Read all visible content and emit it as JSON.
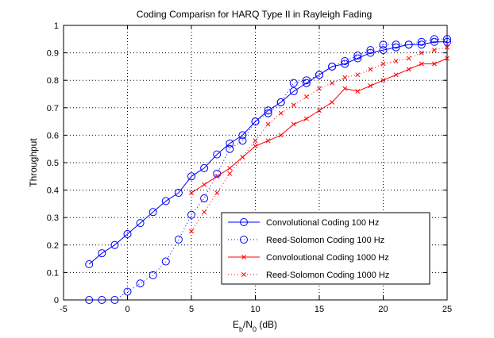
{
  "chart_data": {
    "type": "line",
    "title": "Coding Comparisn for HARQ Type II in Rayleigh Fading",
    "xlabel_base": "E",
    "xlabel_sub1": "b",
    "xlabel_mid": "/N",
    "xlabel_sub2": "0",
    "xlabel_unit": " (dB)",
    "ylabel": "Throughput",
    "xlim": [
      -5,
      25
    ],
    "ylim": [
      0,
      1
    ],
    "xticks": [
      -5,
      0,
      5,
      10,
      15,
      20,
      25
    ],
    "yticks": [
      0,
      0.1,
      0.2,
      0.3,
      0.4,
      0.5,
      0.6,
      0.7,
      0.8,
      0.9,
      1
    ],
    "grid": true,
    "legend_position": "lower-right",
    "series": [
      {
        "name": "Convolutional Coding 100 Hz",
        "color": "#0000ff",
        "line": "solid",
        "marker": "circle",
        "x": [
          -3,
          -2,
          -1,
          0,
          1,
          2,
          3,
          4,
          5,
          6,
          7,
          8,
          9,
          10,
          11,
          12,
          13,
          14,
          15,
          16,
          17,
          18,
          19,
          20,
          21,
          22,
          23,
          24,
          25
        ],
        "y": [
          0.13,
          0.17,
          0.2,
          0.24,
          0.28,
          0.32,
          0.36,
          0.39,
          0.45,
          0.48,
          0.53,
          0.57,
          0.6,
          0.65,
          0.69,
          0.72,
          0.76,
          0.79,
          0.82,
          0.85,
          0.86,
          0.88,
          0.9,
          0.91,
          0.92,
          0.93,
          0.93,
          0.94,
          0.94
        ]
      },
      {
        "name": "Reed-Solomon Coding 100 Hz",
        "color": "#0000ff",
        "line": "dotted",
        "marker": "circle",
        "x": [
          -3,
          -2,
          -1,
          0,
          1,
          2,
          3,
          4,
          5,
          6,
          7,
          8,
          9,
          10,
          11,
          12,
          13,
          14,
          15,
          16,
          17,
          18,
          19,
          20,
          21,
          22,
          23,
          24,
          25
        ],
        "y": [
          0.0,
          0.0,
          0.0,
          0.03,
          0.06,
          0.09,
          0.14,
          0.22,
          0.31,
          0.37,
          0.46,
          0.55,
          0.58,
          0.65,
          0.68,
          0.72,
          0.79,
          0.8,
          0.82,
          0.85,
          0.87,
          0.89,
          0.91,
          0.93,
          0.93,
          0.93,
          0.94,
          0.95,
          0.95
        ]
      },
      {
        "name": "Convoloutional Coding 1000 Hz",
        "color": "#ff0000",
        "line": "solid",
        "marker": "x",
        "x": [
          5,
          6,
          7,
          8,
          9,
          10,
          11,
          12,
          13,
          14,
          15,
          16,
          17,
          18,
          19,
          20,
          21,
          22,
          23,
          24,
          25
        ],
        "y": [
          0.39,
          0.42,
          0.45,
          0.48,
          0.52,
          0.56,
          0.58,
          0.6,
          0.64,
          0.66,
          0.69,
          0.72,
          0.77,
          0.76,
          0.78,
          0.8,
          0.82,
          0.84,
          0.86,
          0.86,
          0.88
        ]
      },
      {
        "name": "Reed-Solomon Coding 1000 Hz",
        "color": "#ff0000",
        "line": "dotted",
        "marker": "x",
        "x": [
          5,
          6,
          7,
          8,
          9,
          10,
          11,
          12,
          13,
          14,
          15,
          16,
          17,
          18,
          19,
          20,
          21,
          22,
          23,
          24,
          25
        ],
        "y": [
          0.25,
          0.32,
          0.39,
          0.46,
          0.52,
          0.58,
          0.64,
          0.68,
          0.71,
          0.74,
          0.77,
          0.79,
          0.81,
          0.82,
          0.84,
          0.86,
          0.87,
          0.88,
          0.9,
          0.91,
          0.92
        ]
      }
    ]
  }
}
